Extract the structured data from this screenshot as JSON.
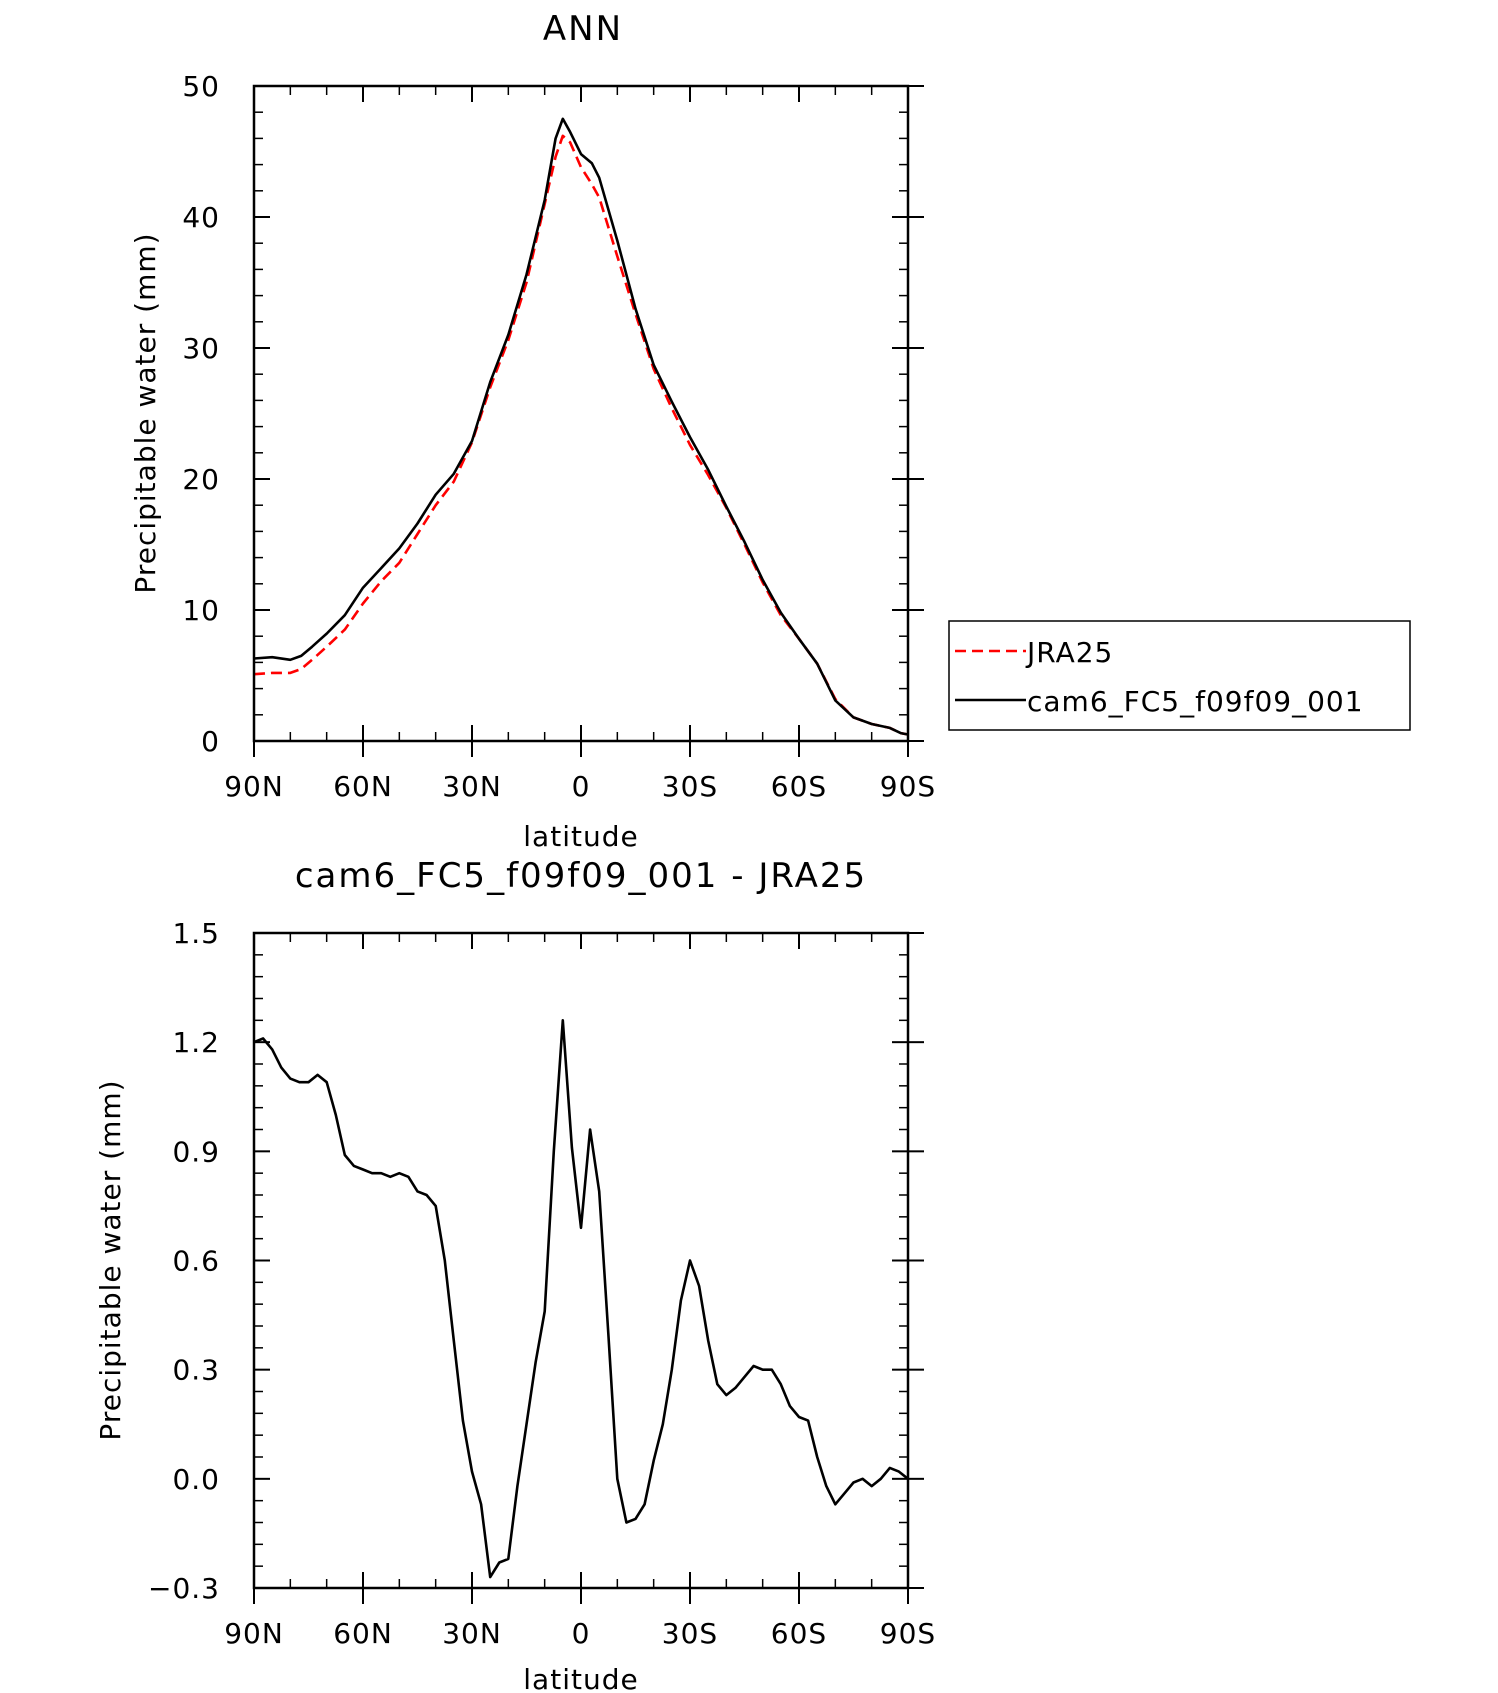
{
  "chart_data": [
    {
      "type": "line",
      "title": "ANN",
      "xlabel": "latitude",
      "ylabel": "Precipitable water (mm)",
      "xlim": [
        90,
        -90
      ],
      "ylim": [
        0,
        50
      ],
      "x_ticks": [
        90,
        60,
        30,
        0,
        -30,
        -60,
        -90
      ],
      "x_tick_labels": [
        "90N",
        "60N",
        "30N",
        "0",
        "30S",
        "60S",
        "90S"
      ],
      "y_ticks": [
        0,
        10,
        20,
        30,
        40,
        50
      ],
      "y_tick_labels": [
        "0",
        "10",
        "20",
        "30",
        "40",
        "50"
      ],
      "legend": {
        "placement": "right",
        "entries": [
          "JRA25",
          "cam6_FC5_f09f09_001"
        ]
      },
      "series": [
        {
          "name": "JRA25",
          "color": "#ff0000",
          "dash": "dashed",
          "x": [
            90,
            85,
            80,
            77,
            74,
            70,
            65,
            60,
            55,
            50,
            45,
            40,
            35,
            30,
            25,
            20,
            15,
            10,
            7,
            5,
            3,
            0,
            -3,
            -5,
            -10,
            -15,
            -20,
            -25,
            -30,
            -35,
            -40,
            -45,
            -50,
            -55,
            -60,
            -65,
            -70,
            -75,
            -80,
            -85,
            -88,
            -90
          ],
          "y": [
            5.1,
            5.2,
            5.2,
            5.5,
            6.2,
            7.2,
            8.5,
            10.5,
            12.2,
            13.6,
            15.8,
            18.0,
            19.8,
            22.8,
            27.0,
            30.6,
            35.0,
            41.0,
            44.6,
            46.2,
            45.7,
            43.8,
            42.5,
            41.5,
            37.0,
            32.6,
            28.4,
            25.4,
            22.6,
            20.3,
            17.8,
            15.0,
            12.1,
            9.6,
            7.8,
            5.9,
            3.2,
            1.8,
            1.3,
            1.0,
            0.6,
            0.5
          ]
        },
        {
          "name": "cam6_FC5_f09f09_001",
          "color": "#000000",
          "dash": "solid",
          "x": [
            90,
            85,
            80,
            77,
            74,
            70,
            65,
            60,
            55,
            50,
            45,
            40,
            35,
            30,
            25,
            20,
            15,
            10,
            7,
            5,
            3,
            0,
            -3,
            -5,
            -10,
            -15,
            -20,
            -25,
            -30,
            -35,
            -40,
            -45,
            -50,
            -55,
            -60,
            -65,
            -70,
            -75,
            -80,
            -85,
            -88,
            -90
          ],
          "y": [
            6.3,
            6.4,
            6.2,
            6.5,
            7.2,
            8.2,
            9.6,
            11.7,
            13.2,
            14.7,
            16.6,
            18.8,
            20.4,
            22.9,
            27.4,
            31.0,
            35.6,
            41.3,
            46.0,
            47.5,
            46.5,
            44.8,
            44.1,
            43.0,
            38.2,
            33.0,
            28.7,
            25.9,
            23.2,
            20.7,
            17.9,
            15.2,
            12.3,
            9.8,
            7.8,
            5.9,
            3.1,
            1.8,
            1.3,
            1.0,
            0.6,
            0.5
          ]
        }
      ]
    },
    {
      "type": "line",
      "title": "cam6_FC5_f09f09_001 - JRA25",
      "xlabel": "latitude",
      "ylabel": "Precipitable water (mm)",
      "xlim": [
        90,
        -90
      ],
      "ylim": [
        -0.3,
        1.5
      ],
      "x_ticks": [
        90,
        60,
        30,
        0,
        -30,
        -60,
        -90
      ],
      "x_tick_labels": [
        "90N",
        "60N",
        "30N",
        "0",
        "30S",
        "60S",
        "90S"
      ],
      "y_ticks": [
        -0.3,
        0.0,
        0.3,
        0.6,
        0.9,
        1.2,
        1.5
      ],
      "y_tick_labels": [
        "−0.3",
        "0.0",
        "0.3",
        "0.6",
        "0.9",
        "1.2",
        "1.5"
      ],
      "series": [
        {
          "color": "#000000",
          "dash": "solid",
          "x": [
            90,
            87.5,
            85,
            82.5,
            80,
            77.5,
            75,
            72.5,
            70,
            67.5,
            65,
            62.5,
            60,
            57.5,
            55,
            52.5,
            50,
            47.5,
            45,
            42.5,
            40,
            37.5,
            35,
            32.5,
            30,
            27.5,
            25,
            22.5,
            20,
            17.5,
            15,
            12.5,
            10,
            7.5,
            5,
            2.5,
            0,
            -2.5,
            -5,
            -7.5,
            -10,
            -12.5,
            -15,
            -17.5,
            -20,
            -22.5,
            -25,
            -27.5,
            -30,
            -32.5,
            -35,
            -37.5,
            -40,
            -42.5,
            -45,
            -47.5,
            -50,
            -52.5,
            -55,
            -57.5,
            -60,
            -62.5,
            -65,
            -67.5,
            -70,
            -72.5,
            -75,
            -77.5,
            -80,
            -82.5,
            -85,
            -87.5,
            -90
          ],
          "y": [
            1.2,
            1.21,
            1.18,
            1.13,
            1.1,
            1.09,
            1.09,
            1.11,
            1.09,
            1.0,
            0.89,
            0.86,
            0.85,
            0.84,
            0.84,
            0.83,
            0.84,
            0.83,
            0.79,
            0.78,
            0.75,
            0.6,
            0.38,
            0.16,
            0.02,
            -0.07,
            -0.27,
            -0.23,
            -0.22,
            -0.02,
            0.15,
            0.32,
            0.46,
            0.9,
            1.26,
            0.91,
            0.69,
            0.96,
            0.79,
            0.4,
            0.0,
            -0.12,
            -0.11,
            -0.07,
            0.05,
            0.15,
            0.3,
            0.49,
            0.6,
            0.53,
            0.38,
            0.26,
            0.23,
            0.25,
            0.28,
            0.31,
            0.3,
            0.3,
            0.26,
            0.2,
            0.17,
            0.16,
            0.06,
            -0.02,
            -0.07,
            -0.04,
            -0.01,
            0.0,
            -0.02,
            0.0,
            0.03,
            0.02,
            0.0
          ]
        }
      ]
    }
  ]
}
